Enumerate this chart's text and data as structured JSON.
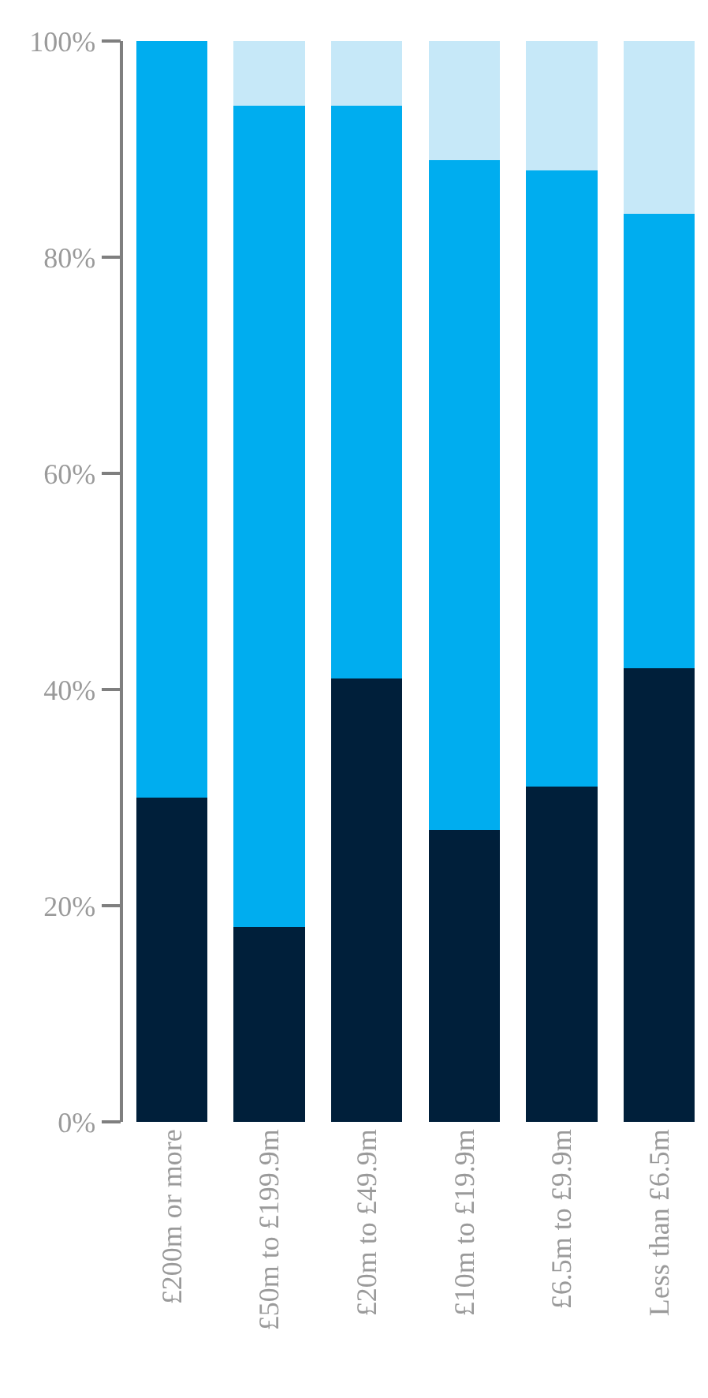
{
  "chart_data": {
    "type": "bar",
    "stacked": true,
    "categories": [
      "£200m or more",
      "£50m to £199.9m",
      "£20m to £49.9m",
      "£10m to £19.9m",
      "£6.5m to £9.9m",
      "Less than £6.5m"
    ],
    "series": [
      {
        "color": "#001f3a",
        "values": [
          30,
          18,
          41,
          27,
          31,
          42
        ]
      },
      {
        "color": "#00adef",
        "values": [
          70,
          76,
          53,
          62,
          57,
          42
        ]
      },
      {
        "color": "#c6e8f8",
        "values": [
          0,
          6,
          6,
          11,
          12,
          16
        ]
      }
    ],
    "ylim": [
      0,
      100
    ],
    "yticks": [
      {
        "value": 0,
        "label": "0%"
      },
      {
        "value": 20,
        "label": "20%"
      },
      {
        "value": 40,
        "label": "40%"
      },
      {
        "value": 60,
        "label": "60%"
      },
      {
        "value": 80,
        "label": "80%"
      },
      {
        "value": 100,
        "label": "100%"
      }
    ]
  }
}
